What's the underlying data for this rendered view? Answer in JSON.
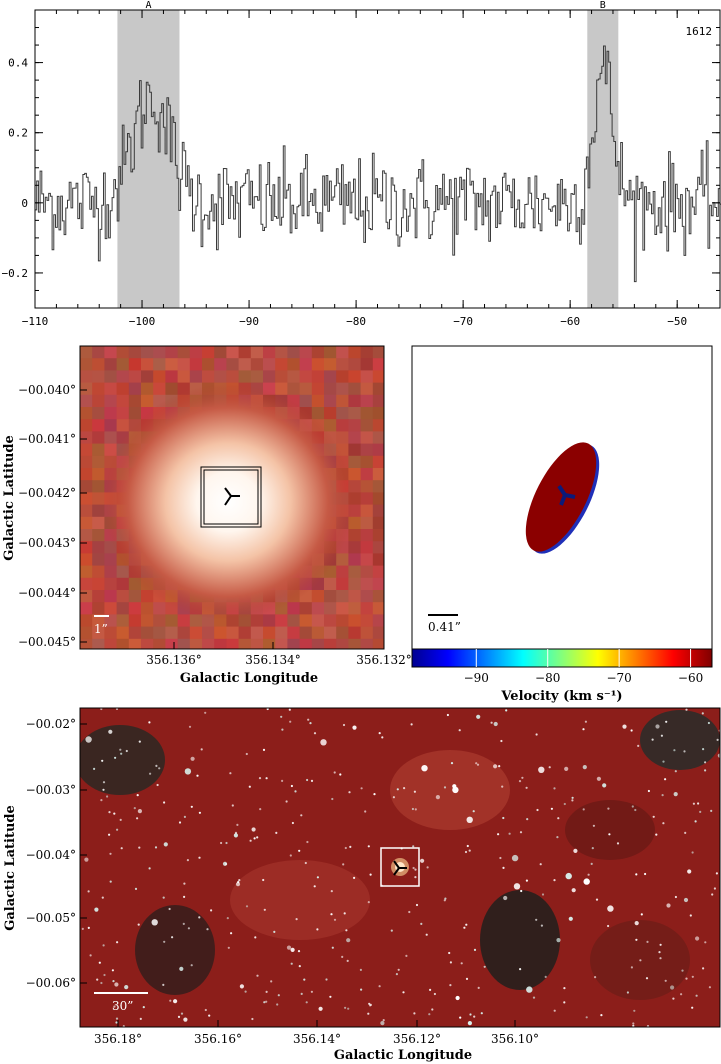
{
  "chart_data": [
    {
      "type": "line",
      "panel": "spectrum",
      "label_1612": "1612",
      "xlim": [
        -110,
        -46
      ],
      "ylim": [
        -0.3,
        0.55
      ],
      "x_ticks": [
        -110,
        -100,
        -90,
        -80,
        -70,
        -60,
        -50
      ],
      "x_tick_labels": [
        "−110",
        "−100",
        "−90",
        "−80",
        "−70",
        "−60",
        "−50"
      ],
      "y_ticks": [
        -0.2,
        0,
        0.2,
        0.4
      ],
      "y_tick_labels": [
        "−0.2",
        "0",
        "0.2",
        "0.4"
      ],
      "shaded_regions": [
        {
          "label": "A",
          "x": [
            -102.3,
            -96.5
          ]
        },
        {
          "label": "B",
          "x": [
            -58.4,
            -55.5
          ]
        }
      ],
      "series": [
        {
          "x_start": -110,
          "x_step": 0.16,
          "peaks": [
            {
              "center": -99.2,
              "height": 0.3,
              "width": 1.7
            },
            {
              "center": -57.0,
              "height": 0.38,
              "width": 0.9
            }
          ],
          "noise": 0.065
        }
      ]
    },
    {
      "type": "heatmap",
      "panel": "zoom-image",
      "ylabel": "Galactic Latitude",
      "xlabel": "Galactic Longitude",
      "x_tick_labels": [
        "356.136°",
        "356.134°",
        "356.132°"
      ],
      "y_tick_labels": [
        "−00.040°",
        "−00.041°",
        "−00.042°",
        "−00.043°",
        "−00.044°",
        "−00.045°"
      ],
      "scale_bar_label": "1”"
    },
    {
      "type": "scatter",
      "panel": "velocity-map",
      "scale_bar_label": "0.41”",
      "colorbar": {
        "label": "Velocity (km s⁻¹)",
        "range": [
          -99,
          -57
        ],
        "tick_labels": [
          "−90",
          "−80",
          "−70",
          "−60"
        ],
        "ticks": [
          -90,
          -80,
          -70,
          -60
        ]
      }
    },
    {
      "type": "heatmap",
      "panel": "wide-field-image",
      "ylabel": "Galactic Latitude",
      "xlabel": "Galactic Longitude",
      "x_tick_labels": [
        "356.18°",
        "356.16°",
        "356.14°",
        "356.12°",
        "356.10°"
      ],
      "y_tick_labels": [
        "−00.02°",
        "−00.03°",
        "−00.04°",
        "−00.05°",
        "−00.06°"
      ],
      "scale_bar_label": "30”"
    }
  ]
}
